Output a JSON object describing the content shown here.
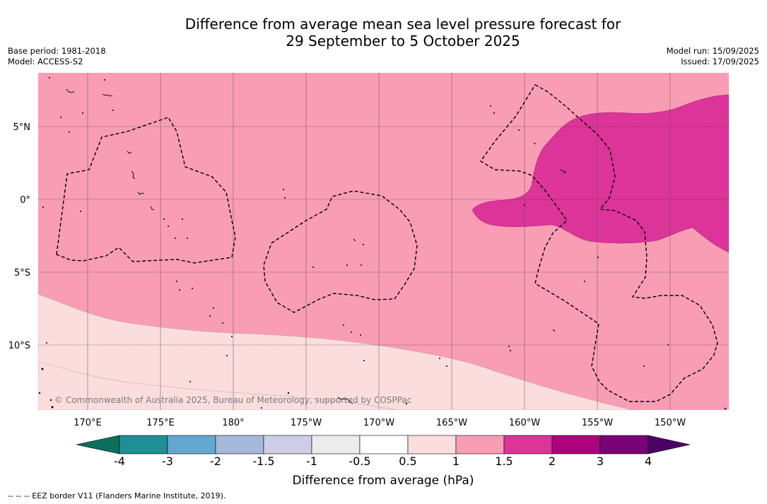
{
  "title": {
    "line1": "Difference from average mean sea level pressure forecast for",
    "line2": "29 September to 5 October 2025"
  },
  "meta_left": {
    "base_period": "Base period: 1981-2018",
    "model": "Model: ACCESS-S2"
  },
  "meta_right": {
    "model_run": "Model run: 15/09/2025",
    "issued": "Issued: 17/09/2025"
  },
  "map": {
    "lon_labels": [
      "170°E",
      "175°E",
      "180°",
      "175°W",
      "170°W",
      "165°W",
      "160°W",
      "155°W",
      "150°W"
    ],
    "lat_labels": [
      "5°N",
      "0°",
      "5°S",
      "10°S"
    ],
    "copyright": "© Commonwealth of Australia 2025, Bureau of Meteorology, supported by COSPPac",
    "fill_colors": {
      "range_0_5_to_1": "#fcdddd",
      "range_1_to_1_5": "#f99db5",
      "range_1_5_to_2": "#dc3498"
    }
  },
  "colorbar": {
    "title": "Difference from average (hPa)",
    "tick_labels": [
      "-4",
      "-3",
      "-2",
      "-1.5",
      "-1",
      "-0.5",
      "0.5",
      "1",
      "1.5",
      "2",
      "3",
      "4"
    ],
    "colors": [
      "#0e6f5d",
      "#1f8f98",
      "#64a8d2",
      "#a5b9da",
      "#cccde6",
      "#ececec",
      "#ffffff",
      "#fcdddd",
      "#f99db5",
      "#dc3498",
      "#ae037e",
      "#7a0476",
      "#4d0066"
    ]
  },
  "footnote": "--  --  -- EEZ border V11 (Flanders Marine Institute, 2019)."
}
